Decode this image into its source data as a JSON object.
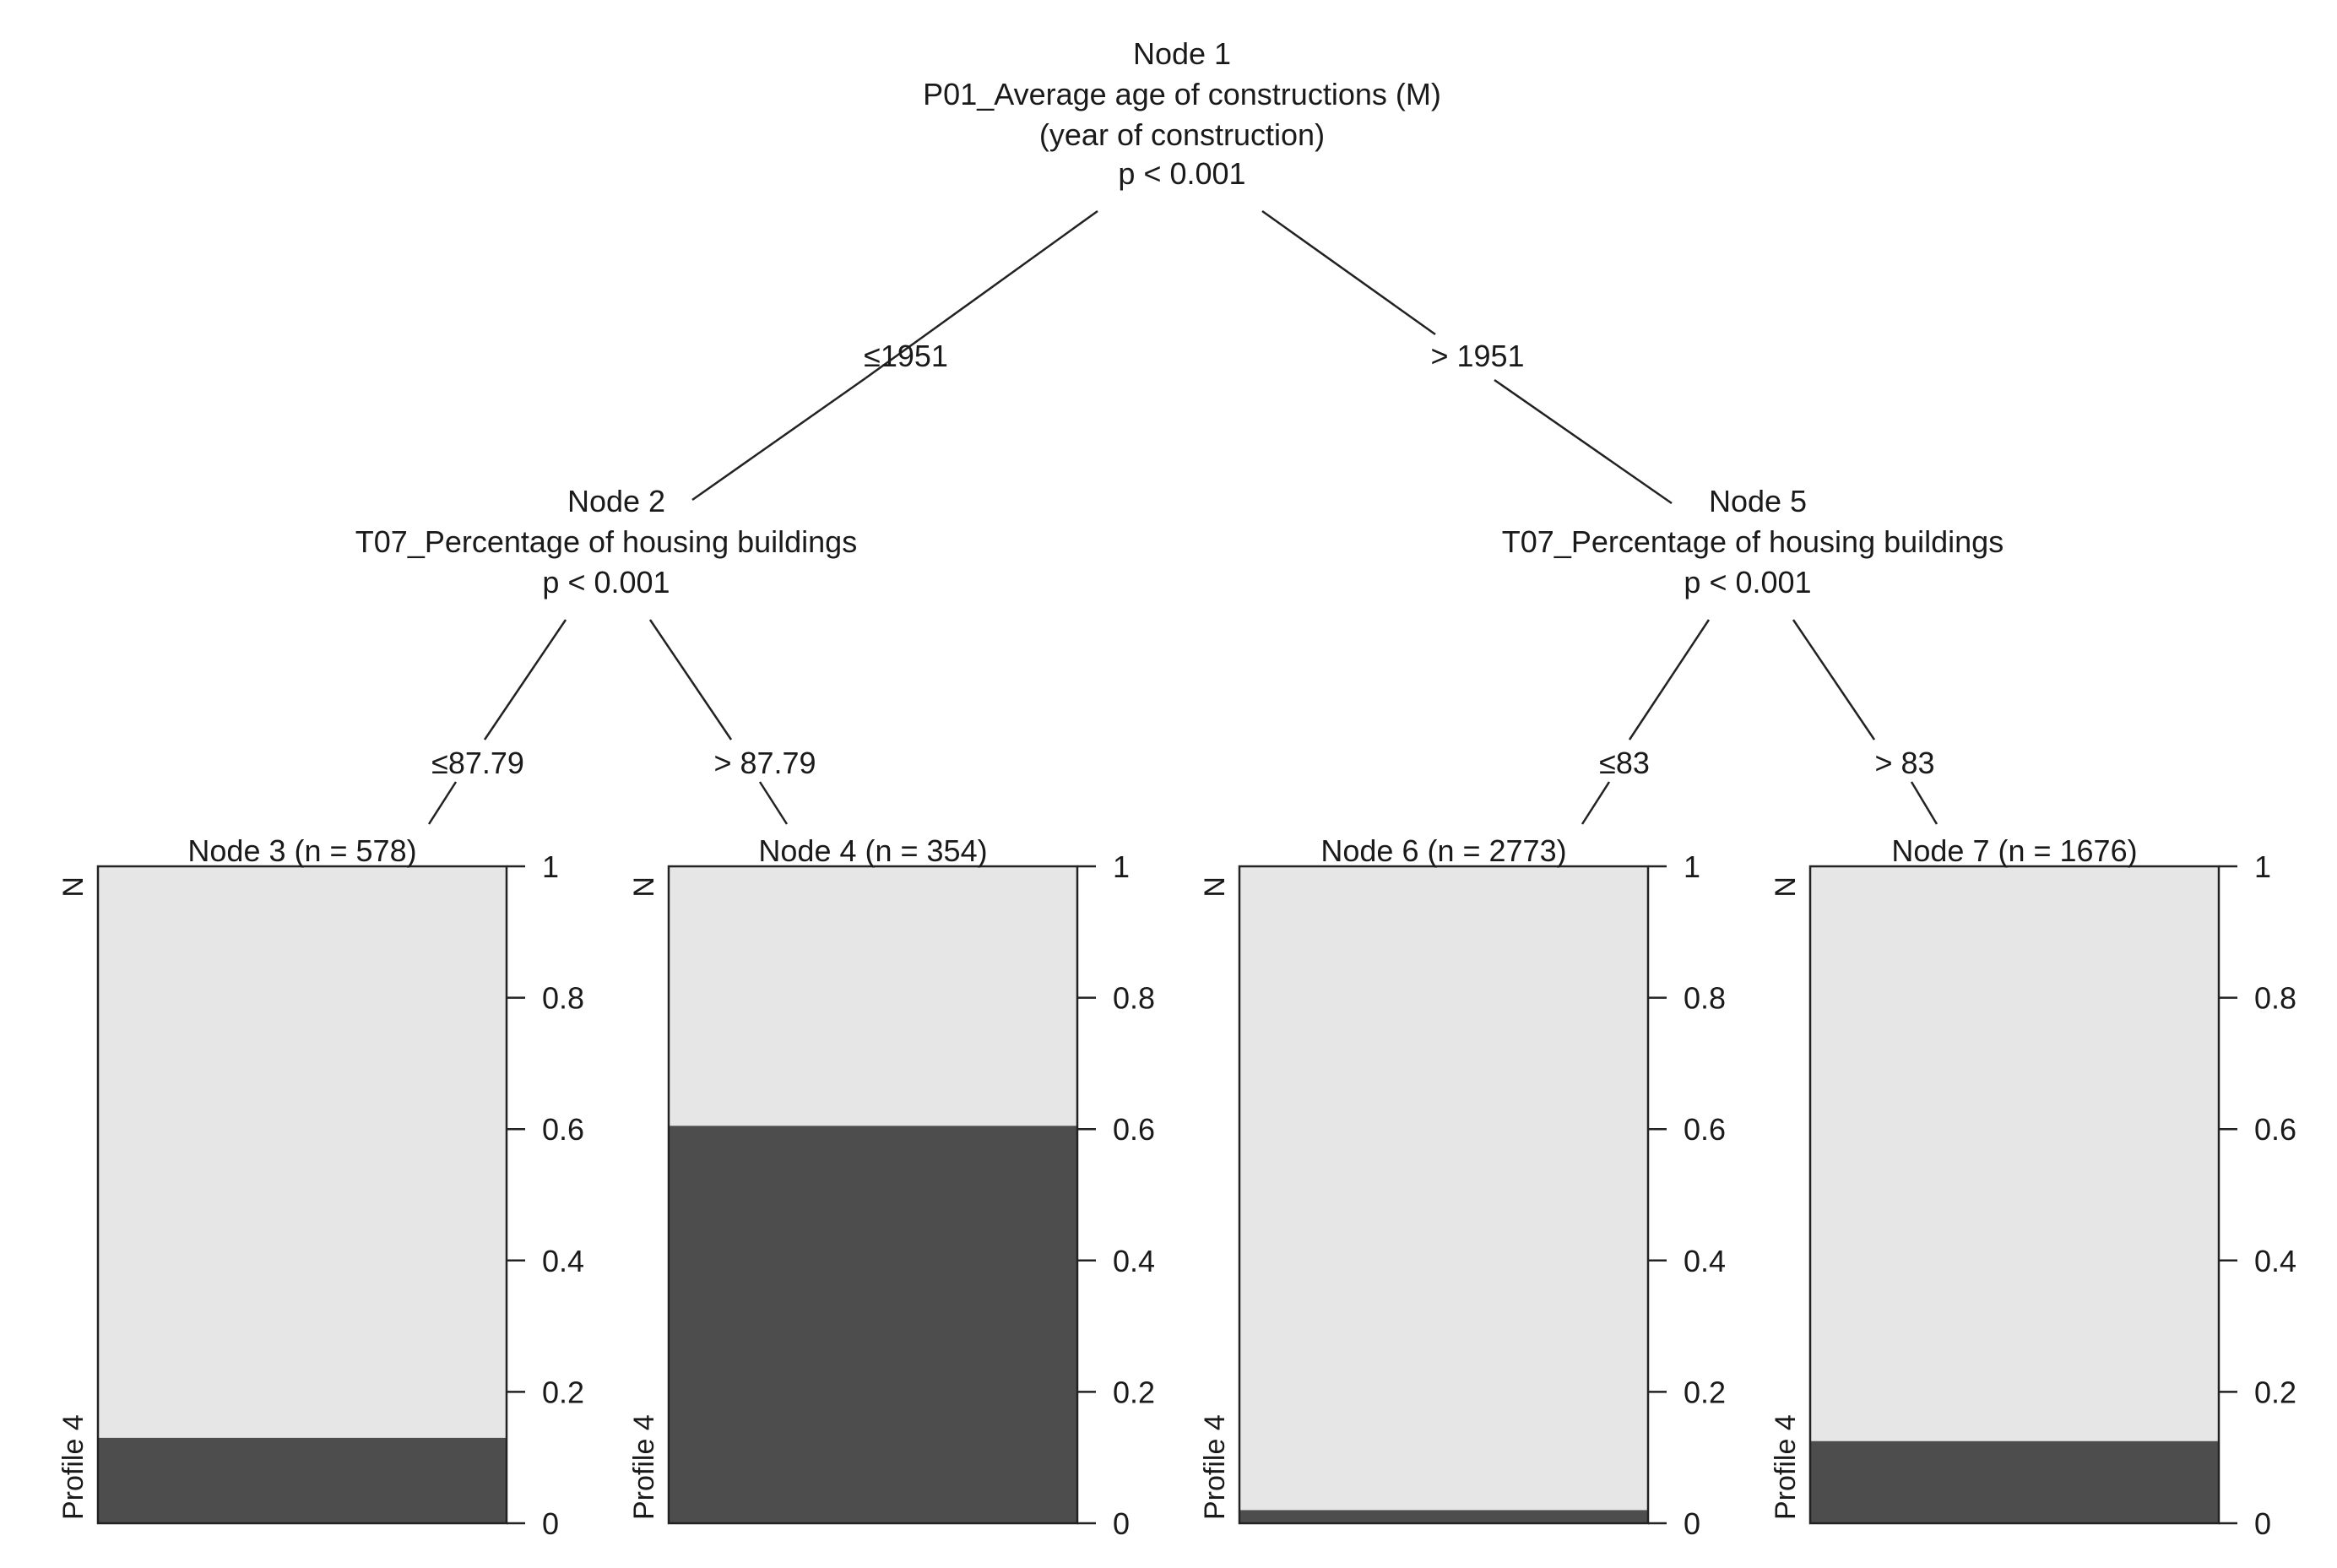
{
  "root": {
    "title": "Node 1",
    "variable": "P01_Average age of constructions (M)",
    "subtitle": "(year of construction)",
    "pvalue": "p < 0.001"
  },
  "edges_level1": {
    "left": "≤1951",
    "right": "> 1951"
  },
  "inner_nodes": [
    {
      "title": "Node 2",
      "variable": "T07_Percentage of housing buildings",
      "pvalue": "p < 0.001",
      "left_edge": "≤87.79",
      "right_edge": "> 87.79"
    },
    {
      "title": "Node 5",
      "variable": "T07_Percentage of housing buildings",
      "pvalue": "p < 0.001",
      "left_edge": "≤83",
      "right_edge": "> 83"
    }
  ],
  "chart_data": {
    "type": "bar",
    "categories": [
      "Node 3 (n = 578)",
      "Node 4 (n = 354)",
      "Node 6 (n = 2773)",
      "Node 7 (n = 1676)"
    ],
    "series": [
      {
        "name": "Profile 4",
        "values": [
          0.13,
          0.605,
          0.02,
          0.125
        ],
        "color": "#4d4d4d"
      },
      {
        "name": "N",
        "values": [
          0.87,
          0.395,
          0.98,
          0.875
        ],
        "color": "#e6e6e6"
      }
    ],
    "ylim": [
      0,
      1
    ],
    "y_ticks": [
      "0",
      "0.2",
      "0.4",
      "0.6",
      "0.8",
      "1"
    ],
    "top_label": "N",
    "bottom_label": "Profile 4"
  }
}
